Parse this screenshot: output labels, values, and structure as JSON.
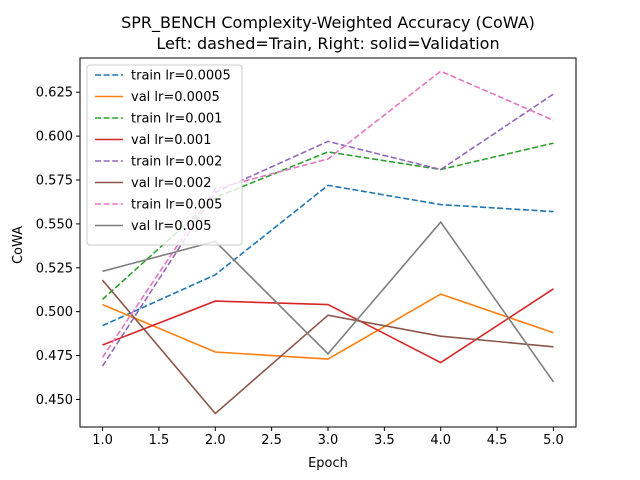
{
  "chart_data": {
    "type": "line",
    "title": "SPR_BENCH Complexity-Weighted Accuracy (CoWA)",
    "subtitle": "Left: dashed=Train, Right: solid=Validation",
    "xlabel": "Epoch",
    "ylabel": "CoWA",
    "x": [
      1,
      2,
      3,
      4,
      5
    ],
    "xlim": [
      0.8,
      5.2
    ],
    "ylim": [
      0.4343,
      0.6445
    ],
    "xticks": [
      "1.0",
      "1.5",
      "2.0",
      "2.5",
      "3.0",
      "3.5",
      "4.0",
      "4.5",
      "5.0"
    ],
    "yticks": [
      "0.450",
      "0.475",
      "0.500",
      "0.525",
      "0.550",
      "0.575",
      "0.600",
      "0.625"
    ],
    "grid": false,
    "legend_position": "top-left",
    "series": [
      {
        "name": "train lr=0.0005",
        "style": "dashed",
        "color": "#1f77b4",
        "values": [
          0.492,
          0.521,
          0.572,
          0.561,
          0.557
        ]
      },
      {
        "name": "val lr=0.0005",
        "style": "solid",
        "color": "#ff7f0e",
        "values": [
          0.504,
          0.477,
          0.473,
          0.51,
          0.488
        ]
      },
      {
        "name": "train lr=0.001",
        "style": "dashed",
        "color": "#2ca02c",
        "values": [
          0.507,
          0.565,
          0.591,
          0.581,
          0.596
        ]
      },
      {
        "name": "val lr=0.001",
        "style": "solid",
        "color": "#d62728",
        "values": [
          0.481,
          0.506,
          0.504,
          0.471,
          0.513
        ]
      },
      {
        "name": "train lr=0.002",
        "style": "dashed",
        "color": "#9467bd",
        "values": [
          0.469,
          0.568,
          0.597,
          0.581,
          0.624
        ]
      },
      {
        "name": "val lr=0.002",
        "style": "solid",
        "color": "#8c564b",
        "values": [
          0.518,
          0.442,
          0.498,
          0.486,
          0.48
        ]
      },
      {
        "name": "train lr=0.005",
        "style": "dashed",
        "color": "#e377c2",
        "values": [
          0.474,
          0.57,
          0.587,
          0.637,
          0.609
        ]
      },
      {
        "name": "val lr=0.005",
        "style": "solid",
        "color": "#7f7f7f",
        "values": [
          0.523,
          0.54,
          0.476,
          0.551,
          0.46
        ]
      }
    ]
  }
}
